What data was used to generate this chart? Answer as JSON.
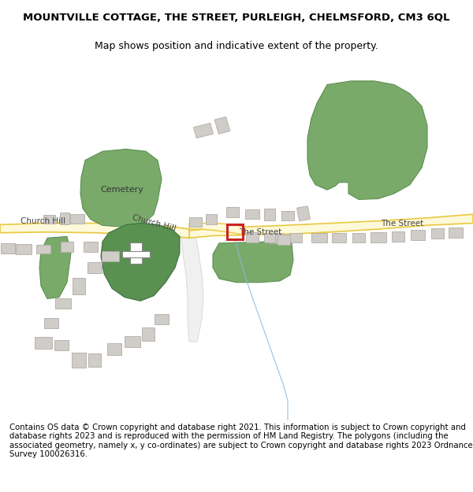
{
  "title": "MOUNTVILLE COTTAGE, THE STREET, PURLEIGH, CHELMSFORD, CM3 6QL",
  "subtitle": "Map shows position and indicative extent of the property.",
  "footer": "Contains OS data © Crown copyright and database right 2021. This information is subject to Crown copyright and database rights 2023 and is reproduced with the permission of HM Land Registry. The polygons (including the associated geometry, namely x, y co-ordinates) are subject to Crown copyright and database rights 2023 Ordnance Survey 100026316.",
  "bg_color": "#ffffff",
  "map_bg": "#ffffff",
  "road_fill": "#fef9d8",
  "road_edge": "#e8c840",
  "green1": "#7aaa6a",
  "green2": "#5a9050",
  "building_color": "#d0ccc8",
  "building_edge": "#b0aca8",
  "highlight_color": "#cc2222",
  "text_color": "#444444",
  "title_fontsize": 9.5,
  "subtitle_fontsize": 9,
  "footer_fontsize": 7.3
}
